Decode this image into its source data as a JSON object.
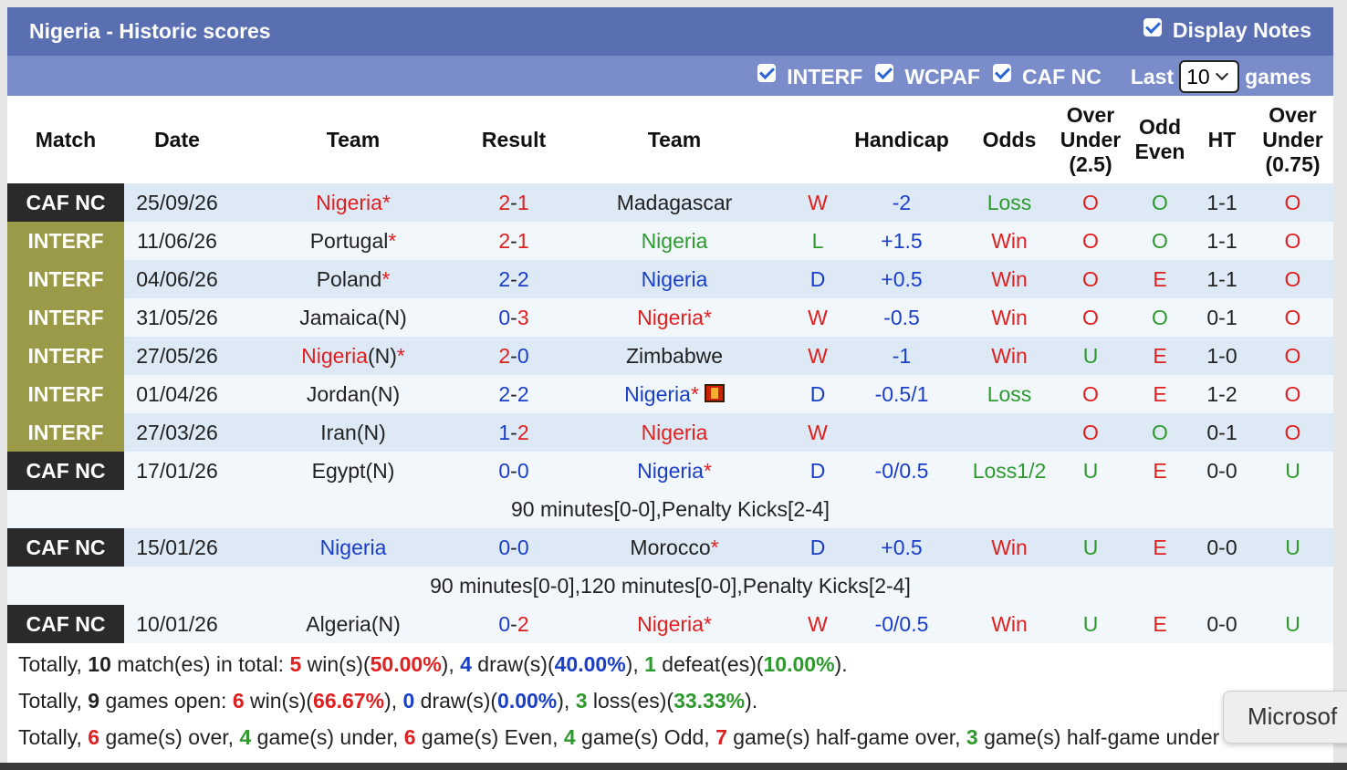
{
  "header": {
    "title": "Nigeria - Historic scores",
    "display_notes": "Display Notes"
  },
  "filters": {
    "interf": "INTERF",
    "wcpaf": "WCPAF",
    "cafnc": "CAF NC",
    "last": "Last",
    "games_value": "10",
    "games": "games"
  },
  "columns": {
    "match": "Match",
    "date": "Date",
    "team1": "Team",
    "result": "Result",
    "team2": "Team",
    "handicap": "Handicap",
    "odds": "Odds",
    "ou_1": "Over",
    "ou_2": "Under",
    "ou_3": "(2.5)",
    "oe_1": "Odd",
    "oe_2": "Even",
    "ht": "HT",
    "ou2_1": "Over",
    "ou2_2": "Under",
    "ou2_3": "(0.75)"
  },
  "colors": {
    "caf_nc": "#2a2a2a",
    "interf": "#9a9a49",
    "win": "#e02020",
    "draw": "#1a3ec8",
    "loss": "#2e9a2e"
  },
  "rows": [
    {
      "comp": "CAF NC",
      "ctype": "caf",
      "date": "25/09/26",
      "home": "Nigeria",
      "home_star": "*",
      "home_color": "red",
      "s1": "2",
      "s2": "1",
      "s1c": "red",
      "s2c": "red",
      "away": "Madagascar",
      "away_star": "",
      "away_color": "",
      "wdl": "W",
      "wdlc": "red",
      "hcap": "-2",
      "hcapc": "blue",
      "odds": "Loss",
      "oddsc": "green",
      "ou": "O",
      "ouc": "red",
      "oe": "O",
      "oec": "green",
      "ht": "1-1",
      "ou2": "O",
      "ou2c": "red"
    },
    {
      "comp": "INTERF",
      "ctype": "interf",
      "date": "11/06/26",
      "home": "Portugal",
      "home_star": "*",
      "home_color": "",
      "s1": "2",
      "s2": "1",
      "s1c": "red",
      "s2c": "red",
      "away": "Nigeria",
      "away_star": "",
      "away_color": "green",
      "wdl": "L",
      "wdlc": "green",
      "hcap": "+1.5",
      "hcapc": "blue",
      "odds": "Win",
      "oddsc": "red",
      "ou": "O",
      "ouc": "red",
      "oe": "O",
      "oec": "green",
      "ht": "1-1",
      "ou2": "O",
      "ou2c": "red"
    },
    {
      "comp": "INTERF",
      "ctype": "interf",
      "date": "04/06/26",
      "home": "Poland",
      "home_star": "*",
      "home_color": "",
      "s1": "2",
      "s2": "2",
      "s1c": "blue",
      "s2c": "blue",
      "away": "Nigeria",
      "away_star": "",
      "away_color": "blue",
      "wdl": "D",
      "wdlc": "blue",
      "hcap": "+0.5",
      "hcapc": "blue",
      "odds": "Win",
      "oddsc": "red",
      "ou": "O",
      "ouc": "red",
      "oe": "E",
      "oec": "red",
      "ht": "1-1",
      "ou2": "O",
      "ou2c": "red"
    },
    {
      "comp": "INTERF",
      "ctype": "interf",
      "date": "31/05/26",
      "home": "Jamaica(N)",
      "home_star": "",
      "home_color": "",
      "s1": "0",
      "s2": "3",
      "s1c": "blue",
      "s2c": "red",
      "away": "Nigeria",
      "away_star": "*",
      "away_color": "red",
      "wdl": "W",
      "wdlc": "red",
      "hcap": "-0.5",
      "hcapc": "blue",
      "odds": "Win",
      "oddsc": "red",
      "ou": "O",
      "ouc": "red",
      "oe": "O",
      "oec": "green",
      "ht": "0-1",
      "ou2": "O",
      "ou2c": "red"
    },
    {
      "comp": "INTERF",
      "ctype": "interf",
      "date": "27/05/26",
      "home": "Nigeria",
      "home_suffix": "(N)",
      "home_star": "*",
      "home_color": "red",
      "s1": "2",
      "s2": "0",
      "s1c": "red",
      "s2c": "blue",
      "away": "Zimbabwe",
      "away_star": "",
      "away_color": "",
      "wdl": "W",
      "wdlc": "red",
      "hcap": "-1",
      "hcapc": "blue",
      "odds": "Win",
      "oddsc": "red",
      "ou": "U",
      "ouc": "green",
      "oe": "E",
      "oec": "red",
      "ht": "1-0",
      "ou2": "O",
      "ou2c": "red"
    },
    {
      "comp": "INTERF",
      "ctype": "interf",
      "date": "01/04/26",
      "home": "Jordan(N)",
      "home_star": "",
      "home_color": "",
      "s1": "2",
      "s2": "2",
      "s1c": "blue",
      "s2c": "blue",
      "away": "Nigeria",
      "away_star": "*",
      "away_color": "blue",
      "away_card": true,
      "wdl": "D",
      "wdlc": "blue",
      "hcap": "-0.5/1",
      "hcapc": "blue",
      "odds": "Loss",
      "oddsc": "green",
      "ou": "O",
      "ouc": "red",
      "oe": "E",
      "oec": "red",
      "ht": "1-2",
      "ou2": "O",
      "ou2c": "red"
    },
    {
      "comp": "INTERF",
      "ctype": "interf",
      "date": "27/03/26",
      "home": "Iran(N)",
      "home_star": "",
      "home_color": "",
      "s1": "1",
      "s2": "2",
      "s1c": "blue",
      "s2c": "red",
      "away": "Nigeria",
      "away_star": "",
      "away_color": "red",
      "wdl": "W",
      "wdlc": "red",
      "hcap": "",
      "hcapc": "blue",
      "odds": "",
      "oddsc": "red",
      "ou": "O",
      "ouc": "red",
      "oe": "O",
      "oec": "green",
      "ht": "0-1",
      "ou2": "O",
      "ou2c": "red"
    },
    {
      "comp": "CAF NC",
      "ctype": "caf",
      "date": "17/01/26",
      "home": "Egypt(N)",
      "home_star": "",
      "home_color": "",
      "s1": "0",
      "s2": "0",
      "s1c": "blue",
      "s2c": "blue",
      "away": "Nigeria",
      "away_star": "*",
      "away_color": "blue",
      "wdl": "D",
      "wdlc": "blue",
      "hcap": "-0/0.5",
      "hcapc": "blue",
      "odds": "Loss1/2",
      "oddsc": "green",
      "ou": "U",
      "ouc": "green",
      "oe": "E",
      "oec": "red",
      "ht": "0-0",
      "ou2": "U",
      "ou2c": "green",
      "note": "90 minutes[0-0],Penalty Kicks[2-4]"
    },
    {
      "comp": "CAF NC",
      "ctype": "caf",
      "date": "15/01/26",
      "home": "Nigeria",
      "home_star": "",
      "home_color": "blue",
      "s1": "0",
      "s2": "0",
      "s1c": "blue",
      "s2c": "blue",
      "away": "Morocco",
      "away_star": "*",
      "away_color": "",
      "wdl": "D",
      "wdlc": "blue",
      "hcap": "+0.5",
      "hcapc": "blue",
      "odds": "Win",
      "oddsc": "red",
      "ou": "U",
      "ouc": "green",
      "oe": "E",
      "oec": "red",
      "ht": "0-0",
      "ou2": "U",
      "ou2c": "green",
      "note": "90 minutes[0-0],120 minutes[0-0],Penalty Kicks[2-4]"
    },
    {
      "comp": "CAF NC",
      "ctype": "caf",
      "date": "10/01/26",
      "home": "Algeria(N)",
      "home_star": "",
      "home_color": "",
      "s1": "0",
      "s2": "2",
      "s1c": "blue",
      "s2c": "red",
      "away": "Nigeria",
      "away_star": "*",
      "away_color": "red",
      "wdl": "W",
      "wdlc": "red",
      "hcap": "-0/0.5",
      "hcapc": "blue",
      "odds": "Win",
      "oddsc": "red",
      "ou": "U",
      "ouc": "green",
      "oe": "E",
      "oec": "red",
      "ht": "0-0",
      "ou2": "U",
      "ou2c": "green"
    }
  ],
  "summary": {
    "line1": [
      {
        "t": "Totally, ",
        "c": ""
      },
      {
        "t": "10",
        "c": "b"
      },
      {
        "t": " match(es) in total: ",
        "c": ""
      },
      {
        "t": "5",
        "c": "red b"
      },
      {
        "t": " win(s)(",
        "c": ""
      },
      {
        "t": "50.00%",
        "c": "red b"
      },
      {
        "t": "), ",
        "c": ""
      },
      {
        "t": "4",
        "c": "blue b"
      },
      {
        "t": " draw(s)(",
        "c": ""
      },
      {
        "t": "40.00%",
        "c": "blue b"
      },
      {
        "t": "), ",
        "c": ""
      },
      {
        "t": "1",
        "c": "green b"
      },
      {
        "t": " defeat(es)(",
        "c": ""
      },
      {
        "t": "10.00%",
        "c": "green b"
      },
      {
        "t": ").",
        "c": ""
      }
    ],
    "line2": [
      {
        "t": "Totally, ",
        "c": ""
      },
      {
        "t": "9",
        "c": "b"
      },
      {
        "t": " games open: ",
        "c": ""
      },
      {
        "t": "6",
        "c": "red b"
      },
      {
        "t": " win(s)(",
        "c": ""
      },
      {
        "t": "66.67%",
        "c": "red b"
      },
      {
        "t": "), ",
        "c": ""
      },
      {
        "t": "0",
        "c": "blue b"
      },
      {
        "t": " draw(s)(",
        "c": ""
      },
      {
        "t": "0.00%",
        "c": "blue b"
      },
      {
        "t": "), ",
        "c": ""
      },
      {
        "t": "3",
        "c": "green b"
      },
      {
        "t": " loss(es)(",
        "c": ""
      },
      {
        "t": "33.33%",
        "c": "green b"
      },
      {
        "t": ").",
        "c": ""
      }
    ],
    "line3": [
      {
        "t": "Totally, ",
        "c": ""
      },
      {
        "t": "6",
        "c": "red b"
      },
      {
        "t": " game(s) over, ",
        "c": ""
      },
      {
        "t": "4",
        "c": "green b"
      },
      {
        "t": " game(s) under, ",
        "c": ""
      },
      {
        "t": "6",
        "c": "red b"
      },
      {
        "t": " game(s) Even, ",
        "c": ""
      },
      {
        "t": "4",
        "c": "green b"
      },
      {
        "t": " game(s) Odd, ",
        "c": ""
      },
      {
        "t": "7",
        "c": "red b"
      },
      {
        "t": " game(s) half-game over, ",
        "c": ""
      },
      {
        "t": "3",
        "c": "green b"
      },
      {
        "t": " game(s) half-game under",
        "c": ""
      }
    ]
  },
  "tooltip": "Microsof"
}
